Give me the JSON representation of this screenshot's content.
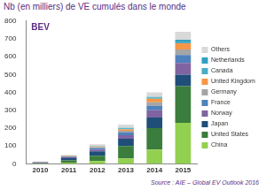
{
  "chart_data": {
    "type": "bar",
    "title": "Nb (en milliers) de VE cumulés dans le monde",
    "subtitle": "BEV",
    "source": "Source : AIE – Global EV Outlook 2016",
    "categories": [
      "2010",
      "2011",
      "2012",
      "2013",
      "2014",
      "2015"
    ],
    "stacked": true,
    "grid": false,
    "legend": "right",
    "ylim": [
      0,
      800
    ],
    "yticks": [
      0,
      100,
      200,
      300,
      400,
      500,
      600,
      700,
      800
    ],
    "series": [
      {
        "name": "China",
        "color": "#92d050",
        "values": [
          2,
          7,
          15,
          30,
          80,
          230
        ]
      },
      {
        "name": "United States",
        "color": "#3b7d3c",
        "values": [
          1,
          12,
          30,
          70,
          120,
          205
        ]
      },
      {
        "name": "Japan",
        "color": "#1f4e79",
        "values": [
          3,
          13,
          25,
          40,
          60,
          65
        ]
      },
      {
        "name": "Norway",
        "color": "#8064a2",
        "values": [
          3,
          5,
          10,
          20,
          40,
          65
        ]
      },
      {
        "name": "France",
        "color": "#4f81bd",
        "values": [
          0.5,
          3,
          8,
          15,
          25,
          45
        ]
      },
      {
        "name": "Germany",
        "color": "#a5a5a5",
        "values": [
          0.5,
          2,
          5,
          10,
          20,
          30
        ]
      },
      {
        "name": "United Kingdom",
        "color": "#f79646",
        "values": [
          0.5,
          1.5,
          4,
          8,
          20,
          35
        ]
      },
      {
        "name": "Canada",
        "color": "#4bacc6",
        "values": [
          0,
          0.5,
          1,
          3,
          5,
          10
        ]
      },
      {
        "name": "Netherlands",
        "color": "#31a0c0",
        "values": [
          0.5,
          1,
          2,
          5,
          5,
          10
        ]
      },
      {
        "name": "Others",
        "color": "#d9d9d9",
        "values": [
          2,
          5,
          10,
          19,
          25,
          45
        ]
      }
    ]
  }
}
